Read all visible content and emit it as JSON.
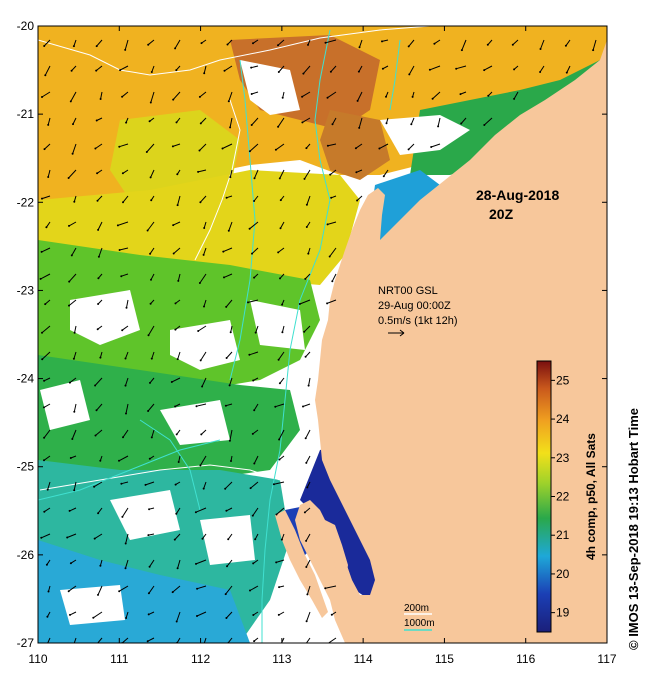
{
  "map": {
    "x_ticks": [
      "110",
      "111",
      "112",
      "113",
      "114",
      "115",
      "116",
      "117"
    ],
    "y_ticks": [
      "-20",
      "-21",
      "-22",
      "-23",
      "-24",
      "-25",
      "-26",
      "-27"
    ],
    "x_range": [
      110,
      117
    ],
    "y_range": [
      -27,
      -20
    ],
    "date_text": "28-Aug-2018",
    "time_text": "20Z",
    "current_source": "NRT00 GSL",
    "current_time": "29-Aug 00:00Z",
    "vector_scale_text": "0.5m/s (1kt 12h)",
    "contour_200_label": "200m",
    "contour_1000_label": "1000m",
    "colors": {
      "land": "#f7c79b",
      "contour_200": "#ffffff",
      "contour_1000": "#40e0d0",
      "no_data": "#ffffff"
    }
  },
  "colorbar": {
    "title": "4h comp, p50, All Sats",
    "ticks": [
      "19",
      "20",
      "21",
      "22",
      "23",
      "24",
      "25"
    ],
    "range": [
      18.5,
      25.5
    ]
  },
  "credit": "© IMOS 13-Sep-2018 19:13 Hobart Time"
}
